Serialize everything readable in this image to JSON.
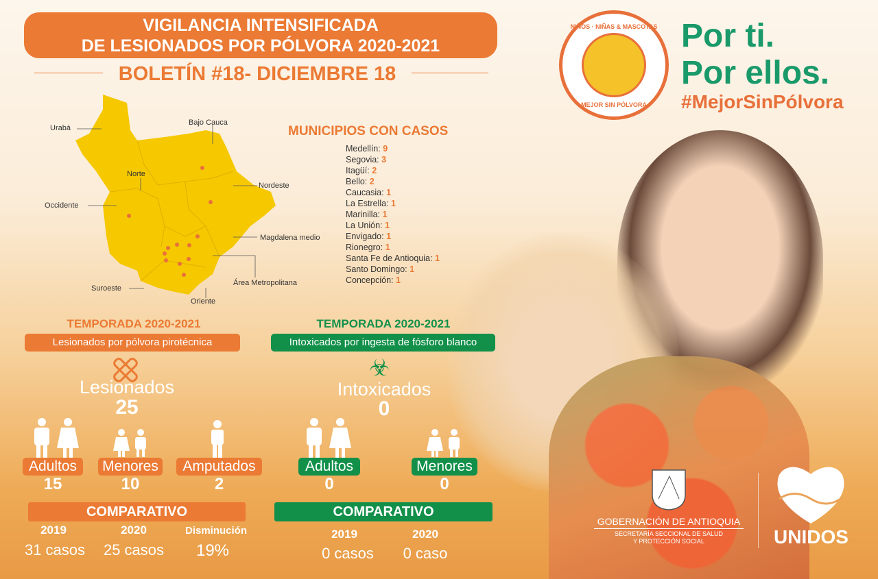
{
  "header": {
    "title_line1": "VIGILANCIA INTENSIFICADA",
    "title_line2": "DE LESIONADOS POR PÓLVORA 2020-2021",
    "bulletin": "BOLETÍN #18- DICIEMBRE 18"
  },
  "map": {
    "regions": [
      "Urabá",
      "Bajo Cauca",
      "Norte",
      "Nordeste",
      "Occidente",
      "Magdalena medio",
      "Suroeste",
      "Área Metropolitana",
      "Oriente"
    ],
    "fill_color": "#f5c800",
    "dot_color": "#e8703a"
  },
  "municipalities": {
    "title": "MUNICIPIOS CON CASOS",
    "items": [
      {
        "name": "Medellín:",
        "count": "9"
      },
      {
        "name": "Segovia:",
        "count": "3"
      },
      {
        "name": "Itagüí:",
        "count": "2"
      },
      {
        "name": "Bello:",
        "count": "2"
      },
      {
        "name": "Caucasia:",
        "count": "1"
      },
      {
        "name": "La Estrella:",
        "count": "1"
      },
      {
        "name": "Marinilla:",
        "count": "1"
      },
      {
        "name": "La Unión:",
        "count": "1"
      },
      {
        "name": "Envigado:",
        "count": "1"
      },
      {
        "name": "Rionegro:",
        "count": "1"
      },
      {
        "name": "Santa Fe de Antioquia:",
        "count": "1"
      },
      {
        "name": "Santo Domingo:",
        "count": "1"
      },
      {
        "name": "Concepción:",
        "count": "1"
      }
    ]
  },
  "campaign": {
    "seal_top": "NIÑOS · NIÑAS & MASCOTAS",
    "seal_bottom": "MEJOR SIN PÓLVORA",
    "slogan1": "Por ti.",
    "slogan2": "Por ellos.",
    "hashtag": "#MejorSinPólvora"
  },
  "injured": {
    "season": "TEMPORADA 2020-2021",
    "subtitle": "Lesionados por pólvora pirotécnica",
    "icon": "bandage-icon",
    "label": "Lesionados",
    "total": "25",
    "groups": [
      {
        "label": "Adultos",
        "value": "15"
      },
      {
        "label": "Menores",
        "value": "10"
      },
      {
        "label": "Amputados",
        "value": "2"
      }
    ],
    "compare": {
      "title": "COMPARATIVO",
      "cols": [
        {
          "head": "2019",
          "value": "31 casos"
        },
        {
          "head": "2020",
          "value": "25 casos"
        },
        {
          "head": "Disminución",
          "value": "19%"
        }
      ]
    },
    "color": "#eb7a34"
  },
  "intox": {
    "season": "TEMPORADA 2020-2021",
    "subtitle": "Intoxicados por ingesta de fósforo blanco",
    "icon": "biohazard-icon",
    "label": "Intoxicados",
    "total": "0",
    "groups": [
      {
        "label": "Adultos",
        "value": "0"
      },
      {
        "label": "Menores",
        "value": "0"
      }
    ],
    "compare": {
      "title": "COMPARATIVO",
      "cols": [
        {
          "head": "2019",
          "value": "0 casos"
        },
        {
          "head": "2020",
          "value": "0 caso"
        }
      ]
    },
    "color": "#12904a"
  },
  "footer": {
    "gov": "GOBERNACIÓN DE ANTIOQUIA",
    "dept1": "SECRETARÍA SECCIONAL DE SALUD",
    "dept2": "Y PROTECCIÓN SOCIAL",
    "brand": "UNIDOS"
  }
}
